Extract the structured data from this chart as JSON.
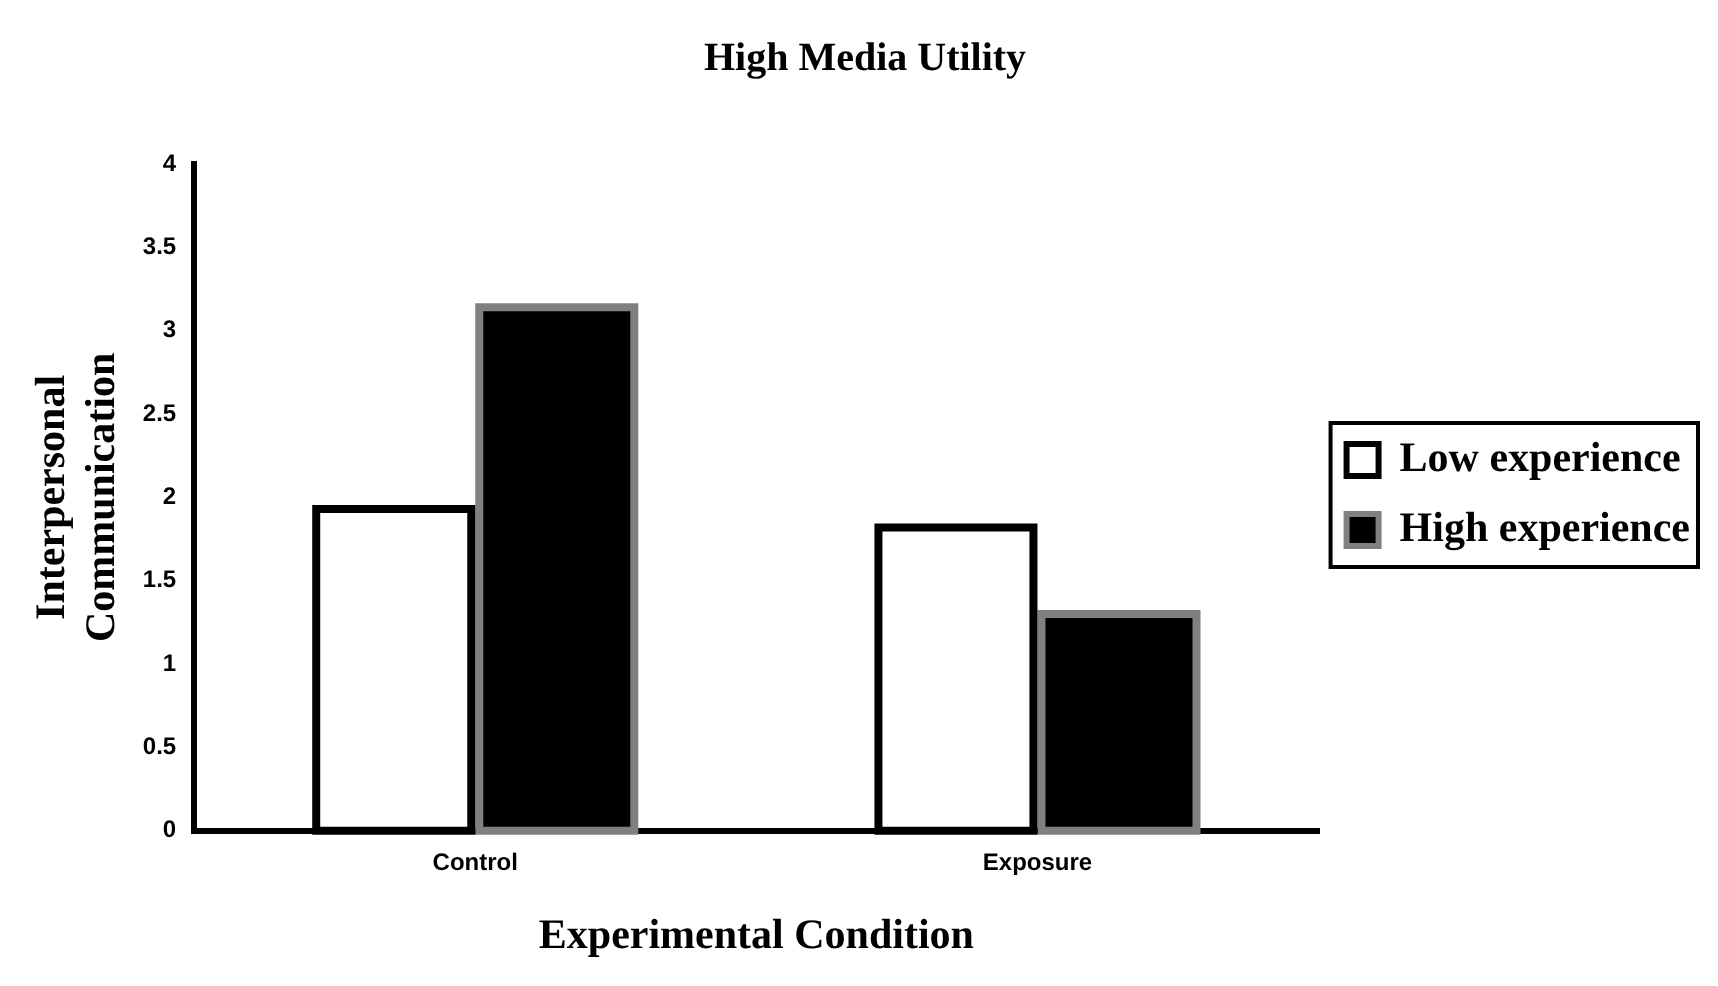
{
  "chart_data": {
    "type": "bar",
    "title": "High Media Utility",
    "xlabel": "Experimental Condition",
    "ylabel": "Interpersonal Communication",
    "categories": [
      "Control",
      "Exposure"
    ],
    "series": [
      {
        "name": "Low experience",
        "color": "#ffffff",
        "values": [
          1.93,
          1.82
        ]
      },
      {
        "name": "High experience",
        "color": "#000000",
        "values": [
          3.14,
          1.3
        ]
      }
    ],
    "ylim": [
      0,
      4
    ],
    "yticks": [
      0,
      0.5,
      1,
      1.5,
      2,
      2.5,
      3,
      3.5,
      4
    ],
    "grid": false,
    "legend": "right"
  }
}
